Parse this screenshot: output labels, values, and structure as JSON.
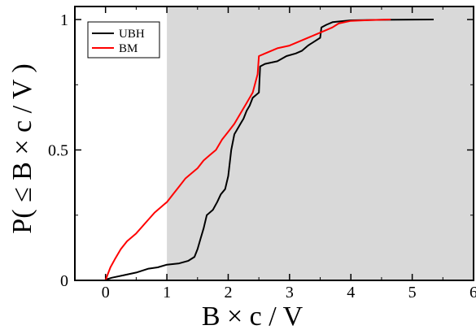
{
  "chart_data": {
    "type": "line",
    "xlabel": "B × c / V",
    "ylabel": "P( ≤ B × c / V )",
    "xlim": [
      -0.5,
      6
    ],
    "ylim": [
      0,
      1.05
    ],
    "xticks": [
      "0",
      "1",
      "2",
      "3",
      "4",
      "5",
      "6"
    ],
    "yticks": [
      "0",
      "0.5",
      "1"
    ],
    "shaded_region": {
      "x_from": 1,
      "x_to": 6,
      "color": "#d9d9d9"
    },
    "legend_position": "top-left",
    "series": [
      {
        "name": "UBH",
        "color": "#000000",
        "points": [
          [
            0.0,
            0.0
          ],
          [
            0.03,
            0.005
          ],
          [
            0.1,
            0.01
          ],
          [
            0.3,
            0.02
          ],
          [
            0.5,
            0.03
          ],
          [
            0.7,
            0.045
          ],
          [
            0.85,
            0.05
          ],
          [
            1.0,
            0.06
          ],
          [
            1.2,
            0.065
          ],
          [
            1.35,
            0.075
          ],
          [
            1.45,
            0.09
          ],
          [
            1.5,
            0.12
          ],
          [
            1.55,
            0.16
          ],
          [
            1.6,
            0.2
          ],
          [
            1.65,
            0.25
          ],
          [
            1.75,
            0.27
          ],
          [
            1.82,
            0.3
          ],
          [
            1.88,
            0.33
          ],
          [
            1.95,
            0.35
          ],
          [
            2.0,
            0.4
          ],
          [
            2.05,
            0.5
          ],
          [
            2.1,
            0.56
          ],
          [
            2.15,
            0.58
          ],
          [
            2.2,
            0.6
          ],
          [
            2.25,
            0.62
          ],
          [
            2.3,
            0.65
          ],
          [
            2.35,
            0.67
          ],
          [
            2.4,
            0.7
          ],
          [
            2.45,
            0.71
          ],
          [
            2.5,
            0.72
          ],
          [
            2.52,
            0.82
          ],
          [
            2.6,
            0.83
          ],
          [
            2.8,
            0.84
          ],
          [
            2.95,
            0.86
          ],
          [
            3.1,
            0.87
          ],
          [
            3.2,
            0.88
          ],
          [
            3.3,
            0.9
          ],
          [
            3.5,
            0.93
          ],
          [
            3.52,
            0.97
          ],
          [
            3.6,
            0.98
          ],
          [
            3.7,
            0.99
          ],
          [
            4.0,
            0.997
          ],
          [
            4.5,
            0.999
          ],
          [
            5.35,
            1.0
          ]
        ]
      },
      {
        "name": "BM",
        "color": "#ff0000",
        "points": [
          [
            0.0,
            0.0
          ],
          [
            0.03,
            0.02
          ],
          [
            0.08,
            0.05
          ],
          [
            0.15,
            0.08
          ],
          [
            0.25,
            0.12
          ],
          [
            0.35,
            0.15
          ],
          [
            0.5,
            0.18
          ],
          [
            0.65,
            0.22
          ],
          [
            0.8,
            0.26
          ],
          [
            0.95,
            0.29
          ],
          [
            1.0,
            0.3
          ],
          [
            1.1,
            0.33
          ],
          [
            1.2,
            0.36
          ],
          [
            1.3,
            0.39
          ],
          [
            1.4,
            0.41
          ],
          [
            1.5,
            0.43
          ],
          [
            1.6,
            0.46
          ],
          [
            1.7,
            0.48
          ],
          [
            1.8,
            0.5
          ],
          [
            1.9,
            0.54
          ],
          [
            2.0,
            0.57
          ],
          [
            2.1,
            0.6
          ],
          [
            2.2,
            0.64
          ],
          [
            2.3,
            0.68
          ],
          [
            2.4,
            0.72
          ],
          [
            2.48,
            0.79
          ],
          [
            2.5,
            0.86
          ],
          [
            2.6,
            0.87
          ],
          [
            2.8,
            0.89
          ],
          [
            3.0,
            0.9
          ],
          [
            3.2,
            0.92
          ],
          [
            3.4,
            0.94
          ],
          [
            3.6,
            0.96
          ],
          [
            3.7,
            0.97
          ],
          [
            3.8,
            0.985
          ],
          [
            4.0,
            0.995
          ],
          [
            4.3,
            0.998
          ],
          [
            4.65,
            1.0
          ]
        ]
      }
    ]
  }
}
